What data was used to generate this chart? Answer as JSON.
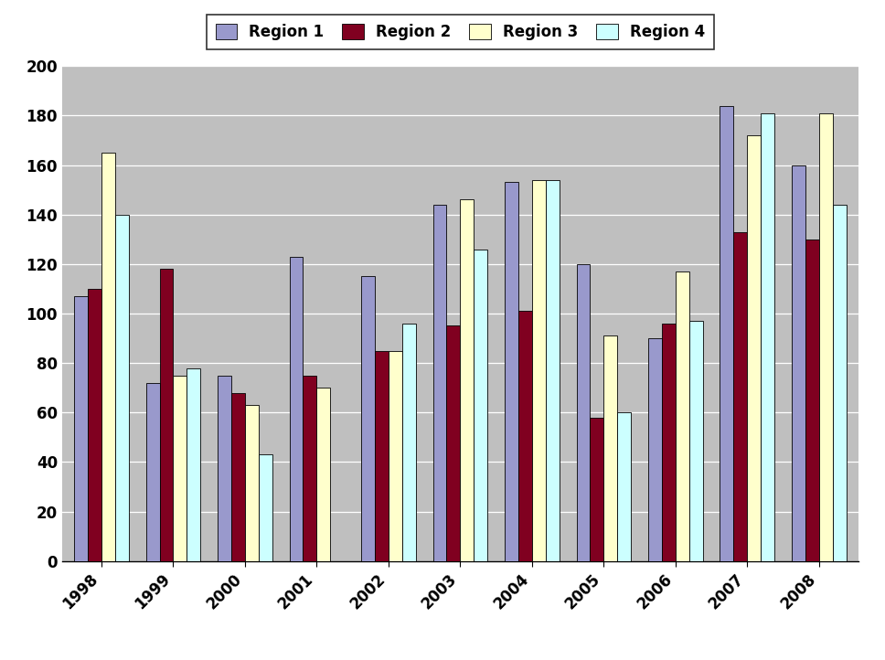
{
  "years": [
    1998,
    1999,
    2000,
    2001,
    2002,
    2003,
    2004,
    2005,
    2006,
    2007,
    2008
  ],
  "region1": [
    107,
    72,
    75,
    123,
    115,
    144,
    153,
    120,
    90,
    184,
    160
  ],
  "region2": [
    110,
    118,
    68,
    75,
    85,
    95,
    101,
    58,
    96,
    133,
    130
  ],
  "region3": [
    165,
    75,
    63,
    70,
    85,
    146,
    154,
    91,
    117,
    172,
    181
  ],
  "region4": [
    140,
    78,
    43,
    0,
    96,
    126,
    154,
    60,
    97,
    181,
    144
  ],
  "colors": [
    "#9999cc",
    "#800020",
    "#ffffcc",
    "#ccffff"
  ],
  "legend_labels": [
    "Region 1",
    "Region 2",
    "Region 3",
    "Region 4"
  ],
  "ylim": [
    0,
    200
  ],
  "yticks": [
    0,
    20,
    40,
    60,
    80,
    100,
    120,
    140,
    160,
    180,
    200
  ],
  "plot_bg_color": "#bfbfbf",
  "outer_bg_color": "#ffffff",
  "bar_width": 0.19,
  "grid_color": "#ffffff",
  "tick_fontsize": 12,
  "legend_fontsize": 12
}
